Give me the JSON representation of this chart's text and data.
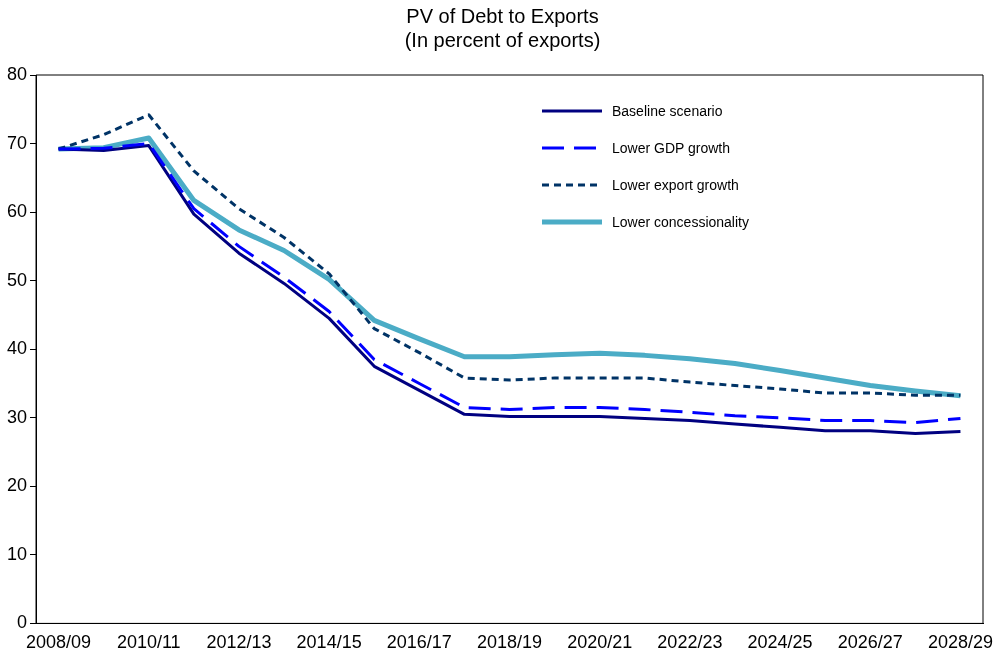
{
  "chart_data": {
    "type": "line",
    "title": "PV of Debt to Exports",
    "subtitle": "(In percent of exports)",
    "categories": [
      "2008/09",
      null,
      "2010/11",
      null,
      "2012/13",
      null,
      "2014/15",
      null,
      "2016/17",
      null,
      "2018/19",
      null,
      "2020/21",
      null,
      "2022/23",
      null,
      "2024/25",
      null,
      "2026/27",
      null,
      "2028/29"
    ],
    "series": [
      {
        "name": "Baseline scenario",
        "color": "#000080",
        "line_style": "solid",
        "values": [
          69.2,
          69,
          69.7,
          59.7,
          54,
          49.6,
          44.5,
          37.5,
          34,
          30.5,
          30.2,
          30.2,
          30.2,
          29.9,
          29.6,
          29.1,
          28.6,
          28.1,
          28.1,
          27.7,
          28.0
        ]
      },
      {
        "name": "Lower GDP  growth",
        "color": "#0000ff",
        "line_style": "dashed",
        "values": [
          69.2,
          69.3,
          70,
          60.5,
          55,
          50.5,
          45.5,
          38.5,
          35,
          31.5,
          31.2,
          31.5,
          31.5,
          31.2,
          30.8,
          30.3,
          30,
          29.6,
          29.6,
          29.3,
          29.9
        ]
      },
      {
        "name": "Lower export growth",
        "color": "#003366",
        "line_style": "dotted",
        "values": [
          69.2,
          71.3,
          74.2,
          66,
          60.5,
          56.3,
          51,
          43,
          39.5,
          35.8,
          35.5,
          35.8,
          35.8,
          35.8,
          35.2,
          34.7,
          34.2,
          33.6,
          33.6,
          33.3,
          33.3
        ]
      },
      {
        "name": "Lower concessionality",
        "color": "#4bacc6",
        "line_style": "solid",
        "values": [
          69.2,
          69.4,
          70.8,
          61.7,
          57.4,
          54.4,
          50.2,
          44.2,
          41.5,
          38.9,
          38.9,
          39.2,
          39.4,
          39.1,
          38.6,
          37.9,
          36.9,
          35.8,
          34.7,
          33.9,
          33.2
        ]
      }
    ],
    "ylim": [
      0,
      80
    ],
    "yticks": [
      0,
      10,
      20,
      30,
      40,
      50,
      60,
      70,
      80
    ],
    "grid": false,
    "legend": "top right",
    "marker": "none"
  }
}
